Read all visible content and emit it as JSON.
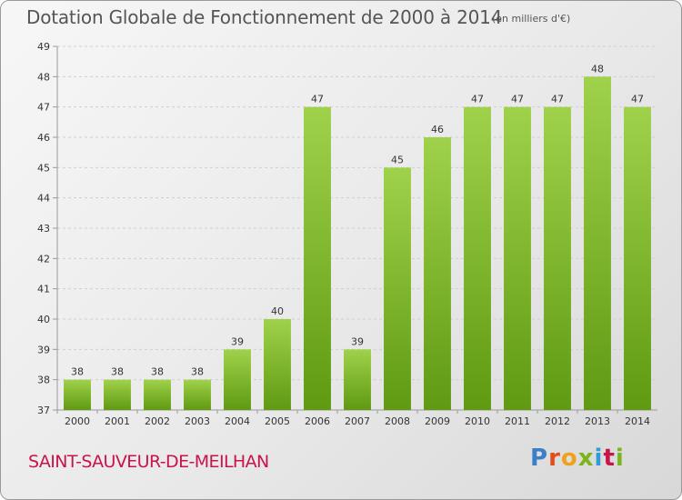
{
  "title": "Dotation Globale de Fonctionnement de 2000 à 2014",
  "subtitle": "(en milliers d'€)",
  "commune": "SAINT-SAUVEUR-DE-MEILHAN",
  "logo": {
    "text": "Proxiti",
    "colors": [
      "#3a7fc8",
      "#e04e1e",
      "#f0a11c",
      "#7ab51d",
      "#2f9bd8",
      "#c8144b",
      "#7ab51d"
    ]
  },
  "colors": {
    "bar_top": "#9fd24a",
    "bar_bottom": "#5f9a12",
    "grid": "#cfcfcf",
    "axis": "#9a9a9a"
  },
  "chart_data": {
    "type": "bar",
    "categories": [
      "2000",
      "2001",
      "2002",
      "2003",
      "2004",
      "2005",
      "2006",
      "2007",
      "2008",
      "2009",
      "2010",
      "2011",
      "2012",
      "2013",
      "2014"
    ],
    "values": [
      38,
      38,
      38,
      38,
      39,
      40,
      47,
      39,
      45,
      46,
      47,
      47,
      47,
      48,
      47
    ],
    "title": "Dotation Globale de Fonctionnement de 2000 à 2014",
    "subtitle": "(en milliers d'€)",
    "xlabel": "",
    "ylabel": "",
    "ylim": [
      37,
      49
    ],
    "yticks": [
      37,
      38,
      39,
      40,
      41,
      42,
      43,
      44,
      45,
      46,
      47,
      48,
      49
    ],
    "grid": true,
    "legend": "none"
  }
}
